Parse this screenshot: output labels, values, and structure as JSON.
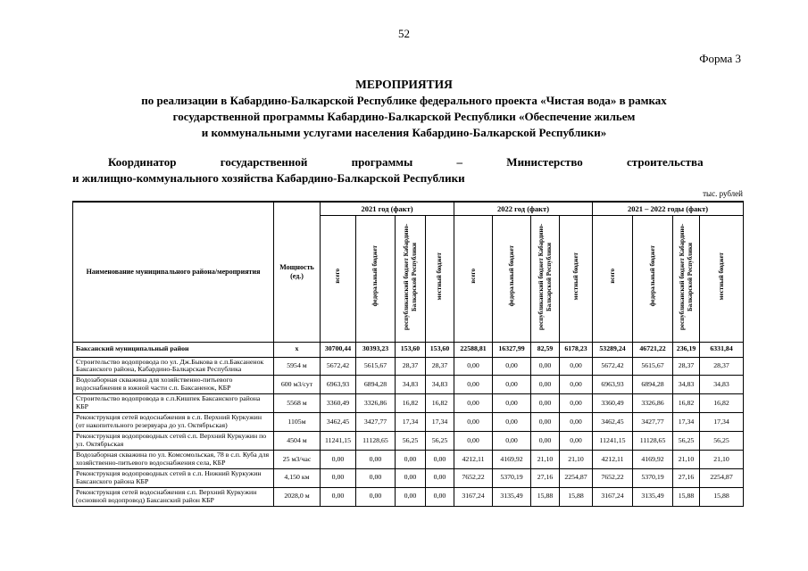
{
  "page": {
    "number": "52",
    "form_label": "Форма 3",
    "units_label": "тыс. рублей"
  },
  "title": {
    "line1": "МЕРОПРИЯТИЯ",
    "line2": "по реализации в Кабардино-Балкарской Республике федерального проекта «Чистая вода» в рамках",
    "line3": "государственной программы Кабардино-Балкарской Республики «Обеспечение жильем",
    "line4": "и коммунальными услугами населения Кабардино-Балкарской Республики»"
  },
  "coordinator": {
    "line1": "Координатор государственной программы – Министерство строительства",
    "line2": "и жилищно-коммунального хозяйства Кабардино-Балкарской Республики"
  },
  "table": {
    "col_name_header": "Наименование муниципального района/мероприятия",
    "col_capacity_header": "Мощность (ед.)",
    "groups": [
      {
        "label": "2021 год (факт)"
      },
      {
        "label": "2022 год (факт)"
      },
      {
        "label": "2021 – 2022 годы (факт)"
      }
    ],
    "sub_headers": [
      "всего",
      "федеральный бюджет",
      "республиканский бюджет  Кабардино-Балкарской Республики",
      "местный бюджет"
    ],
    "rows": [
      {
        "name": "Баксанский муниципальный район",
        "capacity": "х",
        "bold": true,
        "values": [
          "30700,44",
          "30393,23",
          "153,60",
          "153,60",
          "22588,81",
          "16327,99",
          "82,59",
          "6178,23",
          "53289,24",
          "46721,22",
          "236,19",
          "6331,84"
        ]
      },
      {
        "name": "Строительство водопровода по ул. Дж.Быкова в с.п.Баксаненок Баксанского района, Кабардино-Балкарская Республика",
        "capacity": "5954 м",
        "bold": false,
        "values": [
          "5672,42",
          "5615,67",
          "28,37",
          "28,37",
          "0,00",
          "0,00",
          "0,00",
          "0,00",
          "5672,42",
          "5615,67",
          "28,37",
          "28,37"
        ]
      },
      {
        "name": "Водозаборная скважина для хозяйственно-питьевого водоснабжения в южной части с.п. Баксаненок, КБР",
        "capacity": "600 м3/сут",
        "bold": false,
        "values": [
          "6963,93",
          "6894,28",
          "34,83",
          "34,83",
          "0,00",
          "0,00",
          "0,00",
          "0,00",
          "6963,93",
          "6894,28",
          "34,83",
          "34,83"
        ]
      },
      {
        "name": "Строительство  водопровода в с.п.Кишпек Баксанского района КБР",
        "capacity": "5568 м",
        "bold": false,
        "values": [
          "3360,49",
          "3326,86",
          "16,82",
          "16,82",
          "0,00",
          "0,00",
          "0,00",
          "0,00",
          "3360,49",
          "3326,86",
          "16,82",
          "16,82"
        ]
      },
      {
        "name": "Реконструкция сетей водоснабжения в с.п. Верхний Куркужин (от накопительного резервуара до ул. Октябрьская)",
        "capacity": "1105м",
        "bold": false,
        "values": [
          "3462,45",
          "3427,77",
          "17,34",
          "17,34",
          "0,00",
          "0,00",
          "0,00",
          "0,00",
          "3462,45",
          "3427,77",
          "17,34",
          "17,34"
        ]
      },
      {
        "name": "Реконструкция водопроводных сетей с.п. Верхний Куркужин по ул. Октябрьская",
        "capacity": "4504 м",
        "bold": false,
        "values": [
          "11241,15",
          "11128,65",
          "56,25",
          "56,25",
          "0,00",
          "0,00",
          "0,00",
          "0,00",
          "11241,15",
          "11128,65",
          "56,25",
          "56,25"
        ]
      },
      {
        "name": "Водозаборная скважина по ул. Комсомольская, 78 в с.п. Куба для хозяйственно-питьевого водоснабжения села, КБР",
        "capacity": "25 м3/час",
        "bold": false,
        "values": [
          "0,00",
          "0,00",
          "0,00",
          "0,00",
          "4212,11",
          "4169,92",
          "21,10",
          "21,10",
          "4212,11",
          "4169,92",
          "21,10",
          "21,10"
        ]
      },
      {
        "name": "Реконструкция водопроводных сетей в с.п. Нижний Куркужин Баксанского района КБР",
        "capacity": "4,150 км",
        "bold": false,
        "values": [
          "0,00",
          "0,00",
          "0,00",
          "0,00",
          "7652,22",
          "5370,19",
          "27,16",
          "2254,87",
          "7652,22",
          "5370,19",
          "27,16",
          "2254,87"
        ]
      },
      {
        "name": "Реконструкция сетей водоснабжения с.п. Верхний Куркужин (основной водопровод) Баксанский район КБР",
        "capacity": "2028,0 м",
        "bold": false,
        "values": [
          "0,00",
          "0,00",
          "0,00",
          "0,00",
          "3167,24",
          "3135,49",
          "15,88",
          "15,88",
          "3167,24",
          "3135,49",
          "15,88",
          "15,88"
        ]
      }
    ]
  }
}
